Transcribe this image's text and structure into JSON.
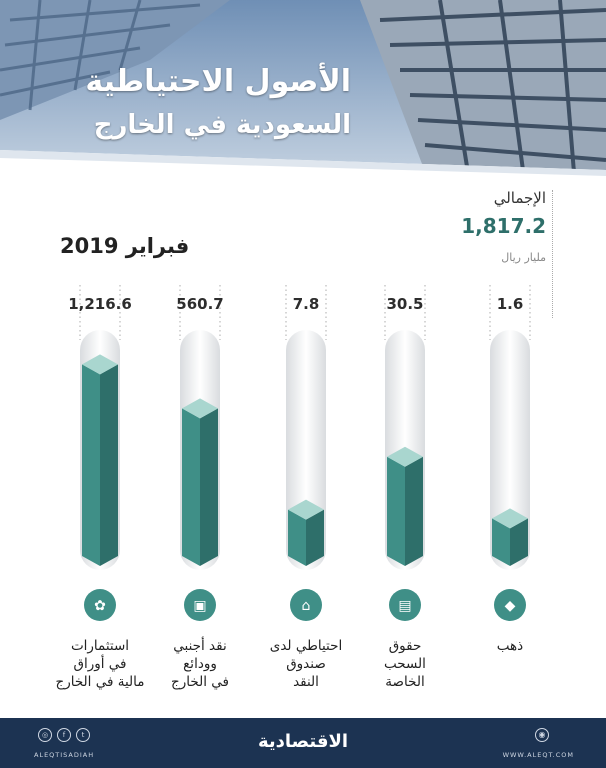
{
  "header": {
    "title_line1": "الأصول الاحتياطية",
    "title_line2": "السعودية في الخارج"
  },
  "total": {
    "label": "الإجمالي",
    "value": "1,817.2",
    "unit": "مليار ريال"
  },
  "date": "فبراير 2019",
  "chart_data": {
    "type": "bar",
    "categories": [
      "استثمارات في أوراق مالية في الخارج",
      "نقد أجنبي وودائع في الخارج",
      "احتياطي لدى صندوق النقد",
      "حقوق السحب الخاصة",
      "ذهب"
    ],
    "label_lines": [
      "استثمارات\nفي أوراق\nمالية في الخارج",
      "نقد أجنبي\nوودائع\nفي الخارج",
      "احتياطي لدى\nصندوق\nالنقد",
      "حقوق\nالسحب\nالخاصة",
      "ذهب"
    ],
    "value_labels": [
      "1,216.6",
      "560.7",
      "7.8",
      "30.5",
      "1.6"
    ],
    "values": [
      1216.6,
      560.7,
      7.8,
      30.5,
      1.6
    ],
    "fill_fraction": [
      0.88,
      0.68,
      0.22,
      0.46,
      0.18
    ],
    "icons": [
      "coins-plant-icon",
      "safe-icon",
      "bank-building-icon",
      "atm-card-icon",
      "gold-bars-icon"
    ]
  },
  "footer": {
    "brand": "الاقتصادية",
    "social_handle": "ALEQTISADIAH",
    "website": "WWW.ALEQT.COM"
  },
  "colors": {
    "bar_front": "#3f8f87",
    "bar_side": "#2e6f6a",
    "bar_top": "#a9d6cf",
    "footer_bg": "#1c3352",
    "header_sky": "#5a7fa8"
  }
}
